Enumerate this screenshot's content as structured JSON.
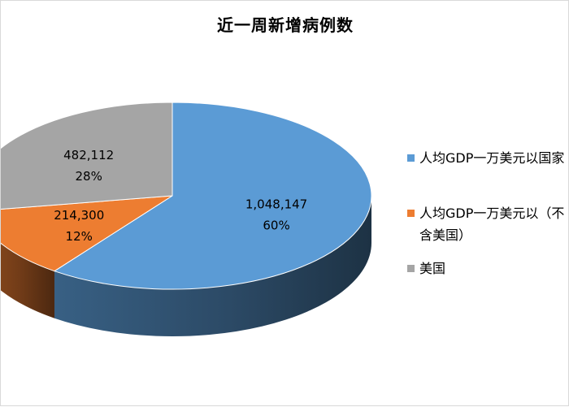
{
  "chart_data": {
    "type": "pie",
    "title": "近一周新增病例数",
    "series": [
      {
        "name": "人均GDP一万美元以上国家",
        "legend_label": "人均GDP一万美元以国家",
        "value": 1048147,
        "value_label": "1,048,147",
        "percent_label": "60%",
        "color": "#5b9bd5"
      },
      {
        "name": "人均GDP一万美元以（不含美国）",
        "legend_label": "人均GDP一万美元以（不含美国）",
        "value": 214300,
        "value_label": "214,300",
        "percent_label": "12%",
        "color": "#ed7d31"
      },
      {
        "name": "美国",
        "legend_label": "美国",
        "value": 482112,
        "value_label": "482,112",
        "percent_label": "28%",
        "color": "#a5a5a5"
      }
    ],
    "style": "3d",
    "legend_position": "right"
  }
}
